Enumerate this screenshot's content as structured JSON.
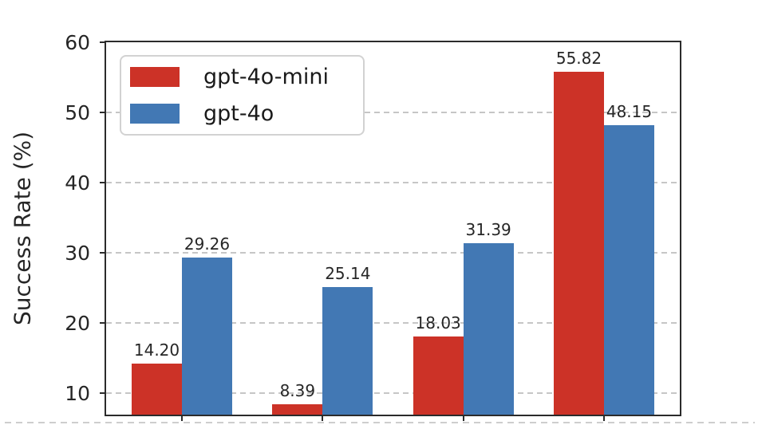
{
  "chart_data": {
    "type": "bar",
    "title": "",
    "xlabel": "",
    "ylabel": "Success Rate (%)",
    "categories": [
      "",
      "",
      "",
      ""
    ],
    "series": [
      {
        "name": "gpt-4o-mini",
        "color": "#cc3227",
        "values": [
          14.2,
          8.39,
          18.03,
          55.82
        ]
      },
      {
        "name": "gpt-4o",
        "color": "#4278b4",
        "values": [
          29.26,
          25.14,
          31.39,
          48.15
        ]
      }
    ],
    "value_label_decimals": 2,
    "yticks": [
      10,
      20,
      30,
      40,
      50,
      60
    ],
    "ylim": [
      6.9,
      60
    ],
    "grid": "horizontal-dashed",
    "legend_position": "upper-left",
    "colors": {
      "axis": "#2b2b2b",
      "grid": "#c6c6c6",
      "text": "#262626",
      "legend_border": "#d2d2d2",
      "background": "#ffffff"
    }
  }
}
